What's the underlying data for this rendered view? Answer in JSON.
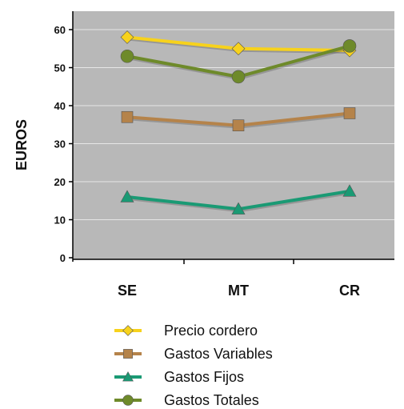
{
  "chart_data": {
    "type": "line",
    "categories": [
      "SE",
      "MT",
      "CR"
    ],
    "ylabel": "EUROS",
    "ylim": [
      0,
      64
    ],
    "yticks": [
      0,
      10,
      20,
      30,
      40,
      50,
      60
    ],
    "grid": "horizontal",
    "legend_position": "bottom",
    "background": "#b8b8b8",
    "series": [
      {
        "name": "Precio cordero",
        "values": [
          58,
          55,
          54.5
        ],
        "color": "#f7d21c",
        "marker": "diamond"
      },
      {
        "name": "Gastos Variables",
        "values": [
          37,
          34.8,
          38
        ],
        "color": "#b5834a",
        "marker": "square"
      },
      {
        "name": "Gastos Fijos",
        "values": [
          16,
          12.8,
          17.5
        ],
        "color": "#1a9a74",
        "marker": "triangle"
      },
      {
        "name": "Gastos Totales",
        "values": [
          53,
          47.6,
          55.7
        ],
        "color": "#6e8a2a",
        "marker": "circle"
      }
    ]
  }
}
